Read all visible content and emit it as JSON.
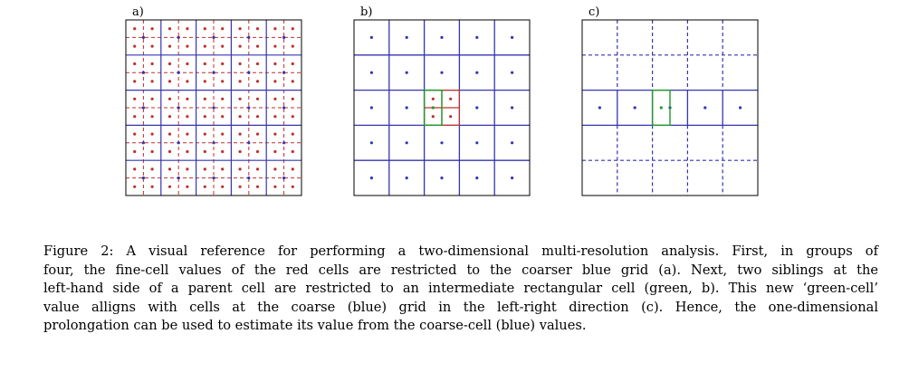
{
  "figure": {
    "panels": [
      {
        "id": "a",
        "label": "a)"
      },
      {
        "id": "b",
        "label": "b)"
      },
      {
        "id": "c",
        "label": "c)"
      }
    ],
    "colors": {
      "coarse_grid": "#3535b0",
      "fine_grid": "#c0302a",
      "intermediate_cell": "#1f9a2a",
      "frame": "#000000"
    }
  },
  "caption": {
    "lines": [
      "Figure 2: A visual reference for performing a two-dimensional multi-resolution analysis. First, in groups of",
      "four, the fine-cell values of the red cells are restricted to the coarser blue grid (a). Next, two siblings at the",
      "left-hand side of a parent cell are restricted to an intermediate rectangular cell (green, b). This new ‘green-cell’",
      "value alligns with cells at the coarse (blue) grid in the left-right direction (c). Hence, the one-dimensional",
      "prolongation can be used to estimate its value from the coarse-cell (blue) values."
    ]
  }
}
